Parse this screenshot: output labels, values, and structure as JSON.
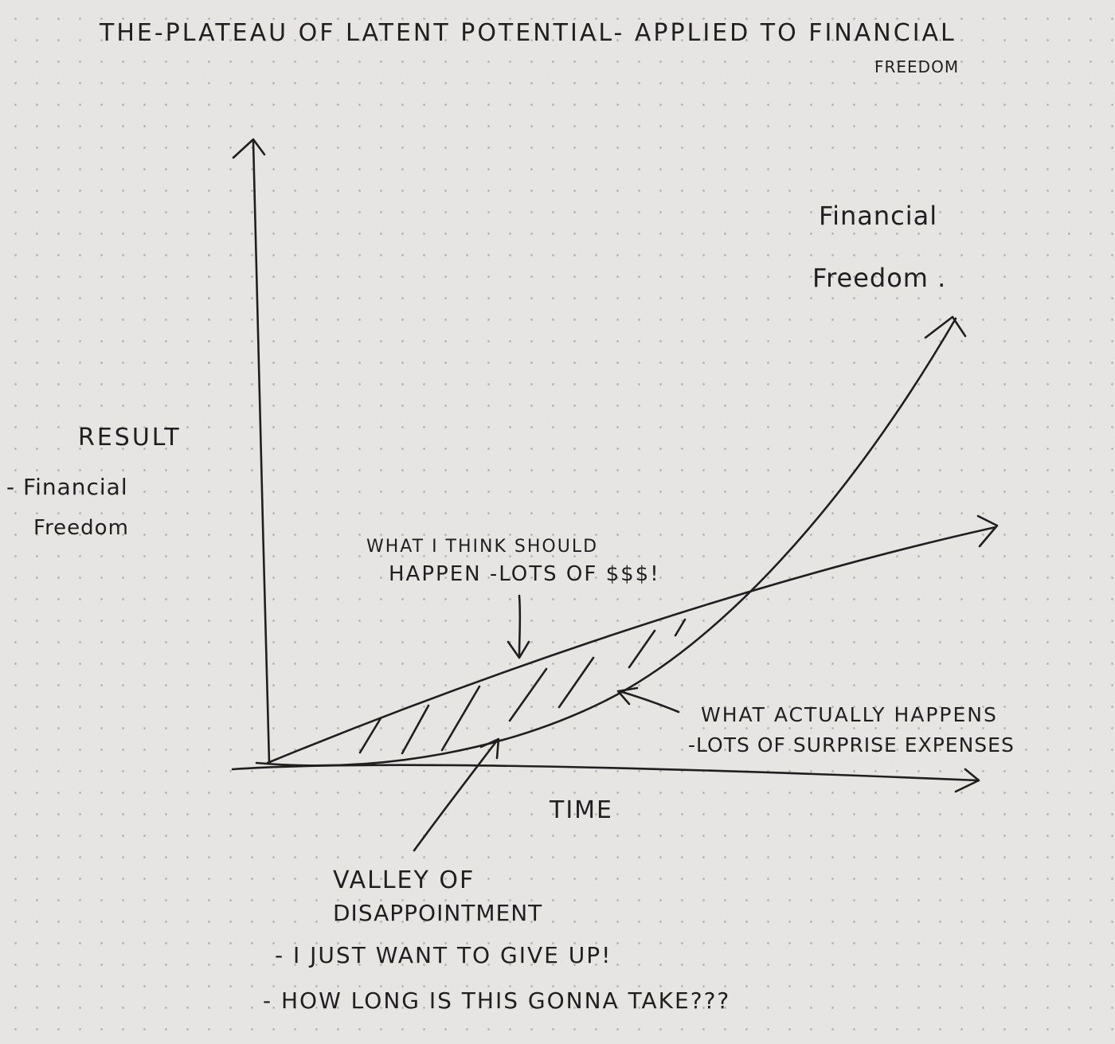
{
  "title": {
    "line1": "THE-PLATEAU OF LATENT POTENTIAL- APPLIED TO FINANCIAL",
    "line2": "FREEDOM"
  },
  "y_axis_label": {
    "line1": "RESULT",
    "line2": "- Financial",
    "line3": "Freedom"
  },
  "x_axis_label": "TIME",
  "curve_label": {
    "line1": "Financial",
    "line2": "Freedom ."
  },
  "expected_label": {
    "line1": "WHAT I THINK SHOULD",
    "line2": "HAPPEN -LOTS OF $$$!"
  },
  "actual_label": {
    "line1": "WHAT ACTUALLY HAPPENS",
    "line2": "-LOTS OF SURPRISE EXPENSES"
  },
  "valley_label": {
    "line1": "VALLEY OF",
    "line2": "DISAPPOINTMENT"
  },
  "notes": [
    "- I JUST WANT TO GIVE UP!",
    "- HOW LONG IS THIS GONNA TAKE???"
  ],
  "ink_color": "#1f1f1f",
  "paper_color": "#e6e5e3"
}
